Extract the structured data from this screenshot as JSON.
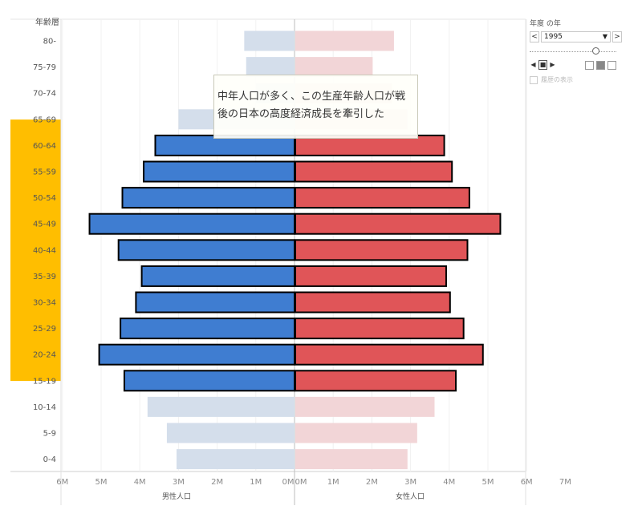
{
  "y_header": "年齢層",
  "chart_data": {
    "type": "bar",
    "categories": [
      "80-",
      "75-79",
      "70-74",
      "65-69",
      "60-64",
      "55-59",
      "50-54",
      "45-49",
      "40-44",
      "35-39",
      "30-34",
      "25-29",
      "20-24",
      "15-19",
      "10-14",
      "5-9",
      "0-4"
    ],
    "series": [
      {
        "name": "男性人口",
        "values": [
          1.3,
          1.25,
          1.0,
          3.0,
          3.6,
          3.9,
          4.45,
          5.3,
          4.55,
          3.95,
          4.1,
          4.5,
          5.05,
          4.4,
          3.8,
          3.3,
          3.05
        ]
      },
      {
        "name": "女性人口",
        "values": [
          2.55,
          2.0,
          2.5,
          2.9,
          3.85,
          4.05,
          4.5,
          5.3,
          4.45,
          3.9,
          4.0,
          4.35,
          4.85,
          4.15,
          3.6,
          3.15,
          2.9
        ]
      }
    ],
    "highlighted": [
      "60-64",
      "55-59",
      "50-54",
      "45-49",
      "40-44",
      "35-39",
      "30-34",
      "25-29",
      "20-24",
      "15-19"
    ],
    "male_ticks": [
      "6M",
      "5M",
      "4M",
      "3M",
      "2M",
      "1M",
      "0M"
    ],
    "female_ticks": [
      "0M",
      "1M",
      "2M",
      "3M",
      "4M",
      "5M",
      "6M",
      "7M"
    ],
    "xlim": [
      0,
      7
    ],
    "male_label": "男性人口",
    "female_label": "女性人口",
    "colors": {
      "male": "#3f7dd1",
      "female": "#e05558",
      "male_faded": "#d4deeb",
      "female_faded": "#f2d5d7",
      "highlight": "#ffbe00"
    }
  },
  "annotation": {
    "line1": "中年人口が多く、この生産年齢人口が戦",
    "line2": "後の日本の高度経済成長を牽引した"
  },
  "filter": {
    "title": "年度 の年",
    "selected_year": "1995",
    "slider_fraction": 0.72,
    "history_label": "履歴の表示",
    "prev_symbol": "<",
    "next_symbol": ">",
    "dropdown_symbol": "▼",
    "back_symbol": "◀",
    "forward_symbol": "▶"
  }
}
